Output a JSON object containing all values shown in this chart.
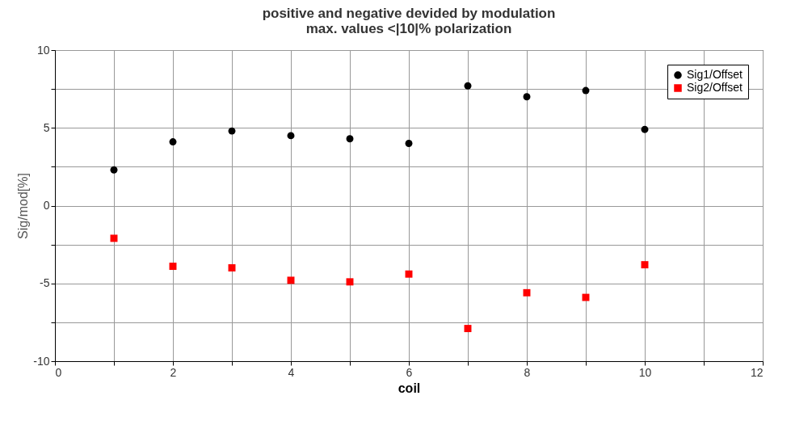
{
  "chart_data": {
    "type": "scatter",
    "title": [
      "positive and negative devided by modulation",
      "max. values <|10|% polarization"
    ],
    "xlabel": "coil",
    "ylabel": "Sig/mod[%]",
    "x": [
      1,
      2,
      3,
      4,
      5,
      6,
      7,
      8,
      9,
      10
    ],
    "series": [
      {
        "name": "Sig1/Offset",
        "color": "#000000",
        "marker": "circle",
        "values": [
          2.3,
          4.1,
          4.8,
          4.5,
          4.3,
          4.0,
          7.7,
          7.0,
          7.4,
          4.9
        ]
      },
      {
        "name": "Sig2/Offset",
        "color": "#ff0000",
        "marker": "square",
        "values": [
          -2.1,
          -3.9,
          -4.0,
          -4.8,
          -4.9,
          -4.4,
          -7.9,
          -5.6,
          -5.9,
          -3.8
        ]
      }
    ],
    "xlim": [
      0,
      12
    ],
    "xticks": [
      0,
      {
        "value": 1,
        "label": null
      },
      2,
      {
        "value": 3,
        "label": null
      },
      4,
      {
        "value": 5,
        "label": null
      },
      6,
      {
        "value": 7,
        "label": null
      },
      8,
      {
        "value": 9,
        "label": null
      },
      10,
      {
        "value": 11,
        "label": null
      },
      12
    ],
    "ylim": [
      -10,
      10
    ],
    "yticks": [
      -10,
      {
        "value": -7.5,
        "label": null
      },
      -5,
      {
        "value": -2.5,
        "label": null
      },
      0,
      {
        "value": 2.5,
        "label": null
      },
      5,
      {
        "value": 7.5,
        "label": null
      },
      10
    ],
    "grid": true,
    "legend": "top right"
  }
}
